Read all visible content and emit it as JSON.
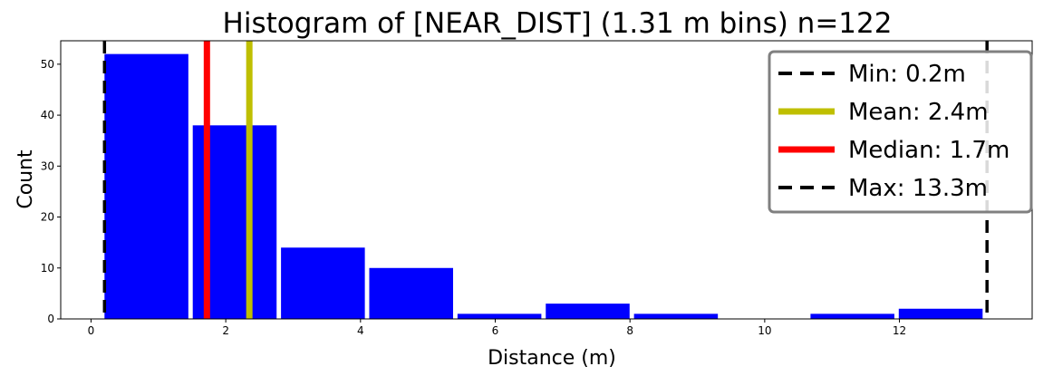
{
  "chart_data": {
    "type": "bar",
    "title": "Histogram of [NEAR_DIST] (1.31 m bins) n=122",
    "xlabel": "Distance (m)",
    "ylabel": "Count",
    "xlim": [
      -0.45,
      13.97
    ],
    "ylim": [
      0,
      54.6
    ],
    "x_ticks": [
      0,
      2,
      4,
      6,
      8,
      10,
      12
    ],
    "y_ticks": [
      0,
      10,
      20,
      30,
      40,
      50
    ],
    "bar_color": "#0000ff",
    "bins": [
      {
        "start": 0.2,
        "end": 1.51,
        "count": 52
      },
      {
        "start": 1.51,
        "end": 2.82,
        "count": 38
      },
      {
        "start": 2.82,
        "end": 4.13,
        "count": 14
      },
      {
        "start": 4.13,
        "end": 5.44,
        "count": 10
      },
      {
        "start": 5.44,
        "end": 6.75,
        "count": 1
      },
      {
        "start": 6.75,
        "end": 8.06,
        "count": 3
      },
      {
        "start": 8.06,
        "end": 9.37,
        "count": 1
      },
      {
        "start": 9.37,
        "end": 10.68,
        "count": 0
      },
      {
        "start": 10.68,
        "end": 11.99,
        "count": 1
      },
      {
        "start": 11.99,
        "end": 13.3,
        "count": 2
      }
    ],
    "reference_lines": [
      {
        "label": "Min: 0.2m",
        "value": 0.2,
        "color": "#000000",
        "style": "dashed"
      },
      {
        "label": "Mean: 2.4m",
        "value": 2.35,
        "color": "#bfbf00",
        "style": "solid"
      },
      {
        "label": "Median: 1.7m",
        "value": 1.72,
        "color": "#ff0000",
        "style": "solid"
      },
      {
        "label": "Max: 13.3m",
        "value": 13.3,
        "color": "#000000",
        "style": "dashed"
      }
    ],
    "legend_order": [
      0,
      1,
      2,
      3
    ],
    "legend_placement": "upper right"
  }
}
